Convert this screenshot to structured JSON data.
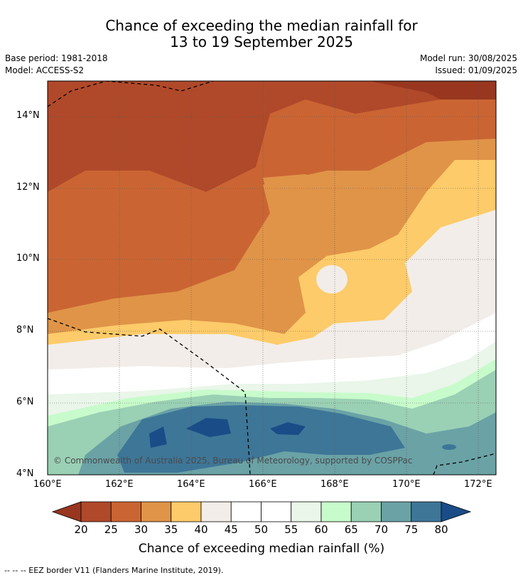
{
  "title_line1": "Chance of exceeding the median rainfall for",
  "title_line2": "13 to 19 September 2025",
  "base_period": "Base period: 1981-2018",
  "model": "Model: ACCESS-S2",
  "model_run": "Model run: 30/08/2025",
  "issued": "Issued: 01/09/2025",
  "copyright": "© Commonwealth of Australia 2025, Bureau of Meteorology, supported by COSPPac",
  "footnote": "-- -- -- EEZ border V11 (Flanders Marine Institute, 2019).",
  "map": {
    "lon_range": [
      160,
      172.5
    ],
    "lat_range": [
      4,
      15
    ],
    "lon_ticks": [
      "160°E",
      "162°E",
      "164°E",
      "166°E",
      "168°E",
      "170°E",
      "172°E"
    ],
    "lat_ticks": [
      "4°N",
      "6°N",
      "8°N",
      "10°N",
      "12°N",
      "14°N"
    ]
  },
  "colorbar": {
    "title": "Chance of exceeding median rainfall (%)",
    "labels": [
      "20",
      "25",
      "30",
      "35",
      "40",
      "45",
      "50",
      "55",
      "60",
      "65",
      "70",
      "75",
      "80"
    ],
    "colors": [
      "#98361f",
      "#b0492a",
      "#ca6533",
      "#e09448",
      "#fdcb69",
      "#f2ede8",
      "#ffffff",
      "#ffffff",
      "#e9f6e9",
      "#c8fbcb",
      "#9ad0b4",
      "#6aa2a6",
      "#3e7698",
      "#1a4d87"
    ]
  }
}
